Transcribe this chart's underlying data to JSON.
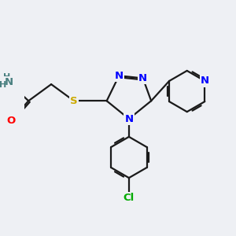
{
  "bg_color": "#eef0f4",
  "bond_color": "#1a1a1a",
  "bond_width": 1.6,
  "atom_colors": {
    "N": "#0000ff",
    "O": "#ff0000",
    "S": "#ccaa00",
    "Cl": "#00aa00",
    "C": "#1a1a1a",
    "H": "#4a8080"
  },
  "dbo": 0.035
}
